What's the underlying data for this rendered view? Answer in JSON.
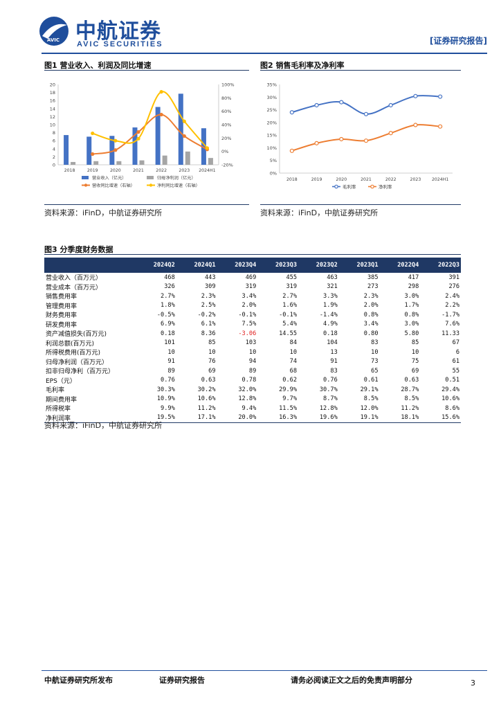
{
  "header": {
    "logo_cn": "中航证券",
    "logo_en": "AVIC SECURITIES",
    "logo_badge": "AVIC",
    "report_tag": "[证券研究报告]"
  },
  "fig1": {
    "title": "图1 营业收入、利润及同比增速",
    "source": "资料来源：iFinD，中航证券研究所",
    "chart_data": {
      "type": "bar",
      "categories": [
        "2018",
        "2019",
        "2020",
        "2021",
        "2022",
        "2023",
        "2024H1"
      ],
      "series": [
        {
          "name": "营业收入（亿元）",
          "kind": "bar",
          "axis": "left",
          "color": "#4472c4",
          "values": [
            7.4,
            7.0,
            7.2,
            9.3,
            14.4,
            17.7,
            9.1
          ]
        },
        {
          "name": "归母净利润（亿元）",
          "kind": "bar",
          "axis": "left",
          "color": "#a5a5a5",
          "values": [
            0.7,
            0.9,
            0.9,
            1.1,
            2.3,
            3.3,
            1.7
          ]
        },
        {
          "name": "营收同比增速（右轴）",
          "kind": "line",
          "axis": "right",
          "color": "#ed7d31",
          "values": [
            null,
            -4,
            2,
            29,
            55,
            23,
            3
          ]
        },
        {
          "name": "净利同比增速（右轴）",
          "kind": "line",
          "axis": "right",
          "color": "#ffc000",
          "values": [
            null,
            27,
            16,
            19,
            89,
            45,
            5
          ]
        }
      ],
      "ylim": [
        0,
        20
      ],
      "yticks": [
        "0",
        "2",
        "4",
        "6",
        "8",
        "10",
        "12",
        "14",
        "16",
        "18",
        "20"
      ],
      "y2lim": [
        -20,
        100
      ],
      "y2ticks": [
        "-20%",
        "0%",
        "20%",
        "40%",
        "60%",
        "80%",
        "100%"
      ],
      "legend": "bottom"
    }
  },
  "fig2": {
    "title": "图2 销售毛利率及净利率",
    "source": "资料来源：iFinD，中航证券研究所",
    "chart_data": {
      "type": "line",
      "categories": [
        "2018",
        "2019",
        "2020",
        "2021",
        "2022",
        "2023",
        "2024H1"
      ],
      "series": [
        {
          "name": "毛利率",
          "color": "#4472c4",
          "values": [
            24.0,
            26.8,
            28.0,
            23.3,
            26.8,
            30.4,
            30.2
          ]
        },
        {
          "name": "净利率",
          "color": "#ed7d31",
          "values": [
            8.8,
            11.8,
            13.4,
            12.8,
            15.8,
            19.0,
            18.4
          ]
        }
      ],
      "ylim": [
        0,
        35
      ],
      "yticks": [
        "0%",
        "5%",
        "10%",
        "15%",
        "20%",
        "25%",
        "30%",
        "35%"
      ],
      "legend": "bottom"
    }
  },
  "fig3": {
    "title": "图3 分季度财务数据",
    "source": "资料来源：iFinD，中航证券研究所",
    "columns": [
      "2024Q2",
      "2024Q1",
      "2023Q4",
      "2023Q3",
      "2023Q2",
      "2023Q1",
      "2022Q4",
      "2022Q3"
    ],
    "rows": [
      {
        "label": "营业收入（百万元）",
        "values": [
          "468",
          "443",
          "469",
          "455",
          "463",
          "385",
          "417",
          "391"
        ]
      },
      {
        "label": "营业成本（百万元）",
        "values": [
          "326",
          "309",
          "319",
          "319",
          "321",
          "273",
          "298",
          "276"
        ]
      },
      {
        "label": "销售费用率",
        "values": [
          "2.7%",
          "2.3%",
          "3.4%",
          "2.7%",
          "3.3%",
          "2.3%",
          "3.0%",
          "2.4%"
        ]
      },
      {
        "label": "管理费用率",
        "values": [
          "1.8%",
          "2.5%",
          "2.0%",
          "1.6%",
          "1.9%",
          "2.0%",
          "1.7%",
          "2.2%"
        ]
      },
      {
        "label": "财务费用率",
        "values": [
          "-0.5%",
          "-0.2%",
          "-0.1%",
          "-0.1%",
          "-1.4%",
          "0.8%",
          "0.8%",
          "-1.7%"
        ]
      },
      {
        "label": "研发费用率",
        "values": [
          "6.9%",
          "6.1%",
          "7.5%",
          "5.4%",
          "4.9%",
          "3.4%",
          "3.0%",
          "7.6%"
        ]
      },
      {
        "label": "资产减值损失(百万元)",
        "values": [
          "0.18",
          "8.36",
          "-3.06",
          "14.55",
          "0.18",
          "0.80",
          "5.80",
          "11.33"
        ]
      },
      {
        "label": "利润总额(百万元)",
        "values": [
          "101",
          "85",
          "103",
          "84",
          "104",
          "83",
          "85",
          "67"
        ]
      },
      {
        "label": "所得税费用(百万元)",
        "values": [
          "10",
          "10",
          "10",
          "10",
          "13",
          "10",
          "10",
          "6"
        ]
      },
      {
        "label": "归母净利润（百万元）",
        "values": [
          "91",
          "76",
          "94",
          "74",
          "91",
          "73",
          "75",
          "61"
        ]
      },
      {
        "label": "扣非归母净利（百万元）",
        "values": [
          "89",
          "69",
          "89",
          "68",
          "83",
          "65",
          "69",
          "55"
        ]
      },
      {
        "label": "EPS（元）",
        "values": [
          "0.76",
          "0.63",
          "0.78",
          "0.62",
          "0.76",
          "0.61",
          "0.63",
          "0.51"
        ]
      },
      {
        "label": "毛利率",
        "values": [
          "30.3%",
          "30.2%",
          "32.0%",
          "29.9%",
          "30.7%",
          "29.1%",
          "28.7%",
          "29.4%"
        ]
      },
      {
        "label": "期间费用率",
        "values": [
          "10.9%",
          "10.6%",
          "12.8%",
          "9.7%",
          "8.7%",
          "8.5%",
          "8.5%",
          "10.6%"
        ]
      },
      {
        "label": "所得税率",
        "values": [
          "9.9%",
          "11.2%",
          "9.4%",
          "11.5%",
          "12.8%",
          "12.0%",
          "11.2%",
          "8.6%"
        ]
      },
      {
        "label": "净利润率",
        "values": [
          "19.5%",
          "17.1%",
          "20.0%",
          "16.3%",
          "19.6%",
          "19.1%",
          "18.1%",
          "15.6%"
        ]
      }
    ],
    "highlight_color": "#e02020"
  },
  "footer": {
    "publisher": "中航证券研究所发布",
    "report_type": "证券研究报告",
    "disclaimer": "请务必阅读正文之后的免责声明部分",
    "page_number": "3"
  }
}
